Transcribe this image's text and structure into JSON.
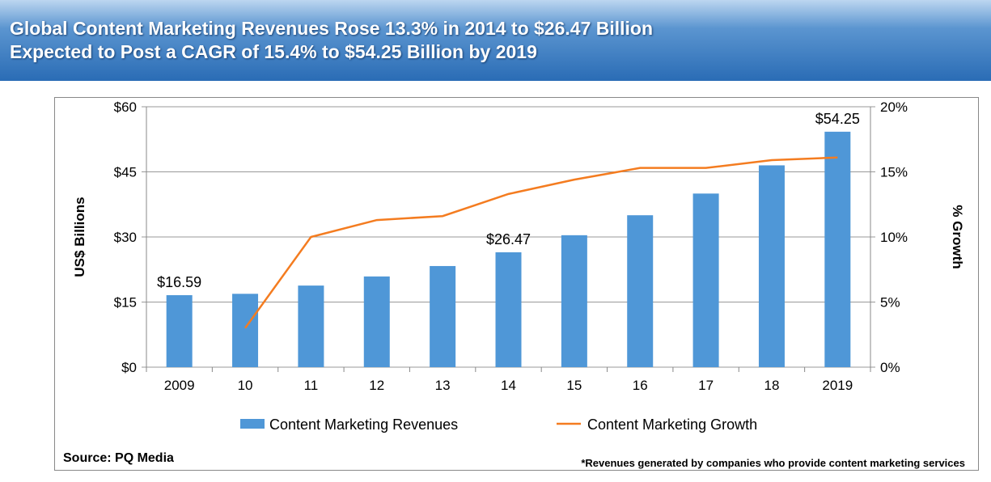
{
  "header": {
    "line1": "Global Content Marketing Revenues Rose 13.3% in 2014 to $26.47 Billion",
    "line2": "Expected to Post a CAGR of 15.4% to $54.25 Billion by 2019"
  },
  "footer": {
    "source": "Source: PQ Media",
    "note": "*Revenues generated by companies who provide content marketing services"
  },
  "chart_data": {
    "type": "bar",
    "categories": [
      "2009",
      "10",
      "11",
      "12",
      "13",
      "14",
      "15",
      "16",
      "17",
      "18",
      "2019"
    ],
    "ylabel": "US$ Billions",
    "y2label": "% Growth",
    "ylim": [
      0,
      60
    ],
    "y2lim": [
      0,
      20
    ],
    "yticks": [
      "$0",
      "$15",
      "$30",
      "$45",
      "$60"
    ],
    "y2ticks": [
      "0%",
      "5%",
      "10%",
      "15%",
      "20%"
    ],
    "grid": true,
    "legend": "bottom",
    "series": [
      {
        "name": "Content Marketing Revenues",
        "type": "bar",
        "color": "#4f97d7",
        "values": [
          16.59,
          16.9,
          18.8,
          20.9,
          23.3,
          26.47,
          30.4,
          35.0,
          40.0,
          46.5,
          54.25
        ]
      },
      {
        "name": "Content Marketing Growth",
        "type": "line",
        "axis": "right",
        "color": "#f47c20",
        "values": [
          null,
          3.0,
          10.0,
          11.3,
          11.6,
          13.3,
          14.4,
          15.3,
          15.3,
          15.9,
          16.1
        ]
      }
    ],
    "data_labels": [
      {
        "index": 0,
        "text": "$16.59"
      },
      {
        "index": 5,
        "text": "$26.47"
      },
      {
        "index": 10,
        "text": "$54.25"
      }
    ]
  }
}
